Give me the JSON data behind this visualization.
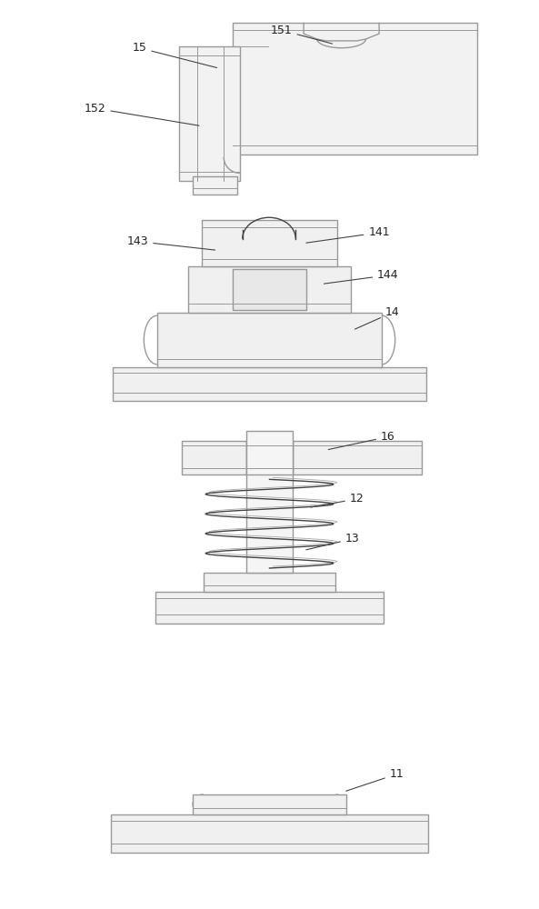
{
  "bg_color": "#ffffff",
  "line_color": "#999999",
  "dark_line": "#444444",
  "fill_light": "#f0f0f0",
  "fill_mid": "#e8e8e8",
  "label_color": "#222222",
  "fig_width": 5.93,
  "fig_height": 10.0
}
